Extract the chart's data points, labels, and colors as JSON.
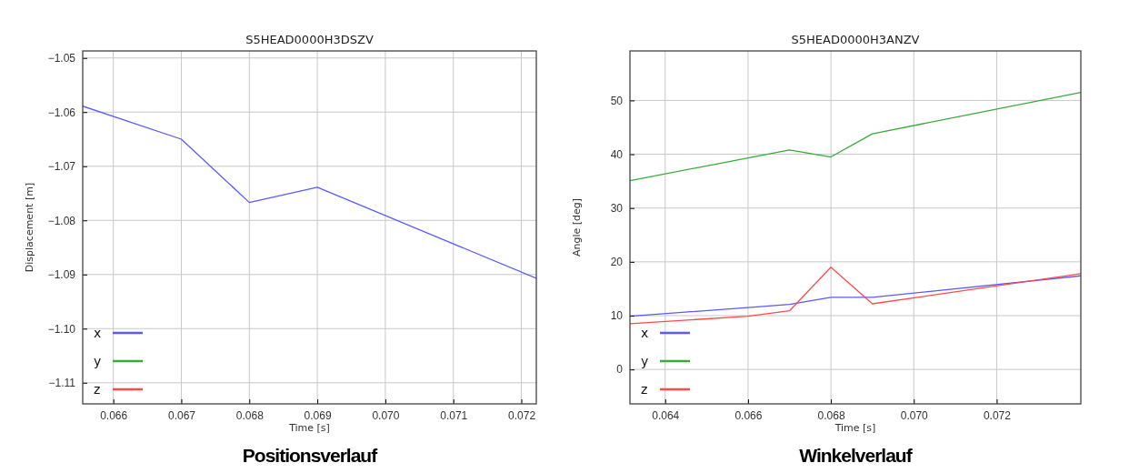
{
  "chart_data": [
    {
      "type": "line",
      "title": "S5HEAD0000H3DSZV",
      "xlabel": "Time [s]",
      "ylabel": "Displacement [m]",
      "annotations": [
        "Positionsverlauf"
      ],
      "x": [
        0.06555,
        0.067,
        0.068,
        0.069,
        0.07222
      ],
      "series": [
        {
          "name": "x",
          "color": "#5a5aff",
          "values": [
            -1.0589,
            -1.065,
            -1.0767,
            -1.0739,
            -1.0907
          ]
        },
        {
          "name": "y",
          "color": "#3aaa3a",
          "values": [
            null,
            null,
            null,
            null,
            null
          ]
        },
        {
          "name": "z",
          "color": "#ff4a4a",
          "values": [
            null,
            null,
            null,
            null,
            null
          ]
        }
      ],
      "xlim": [
        0.06555,
        0.07222
      ],
      "ylim": [
        -1.1139,
        -1.0487
      ],
      "xticks": [
        0.066,
        0.067,
        0.068,
        0.069,
        {
          "value": 0.07,
          "label": "0.070"
        },
        0.071,
        0.072
      ],
      "yticks": [
        {
          "value": -1.11,
          "label": "−1.11"
        },
        {
          "value": -1.1,
          "label": "−1.10"
        },
        {
          "value": -1.09,
          "label": "−1.09"
        },
        {
          "value": -1.08,
          "label": "−1.08"
        },
        {
          "value": -1.07,
          "label": "−1.07"
        },
        {
          "value": -1.06,
          "label": "−1.06"
        },
        {
          "value": -1.05,
          "label": "−1.05"
        }
      ],
      "grid": true,
      "legend": "bottom left"
    },
    {
      "type": "line",
      "title": "S5HEAD0000H3ANZV",
      "xlabel": "Time [s]",
      "ylabel": "Angle [deg]",
      "annotations": [
        "Winkelverlauf"
      ],
      "series": [
        {
          "name": "x",
          "color": "#5a5aff",
          "x": [
            0.06315,
            0.066,
            0.067,
            0.068,
            0.069,
            0.07403
          ],
          "values": [
            9.9,
            11.5,
            12.1,
            13.4,
            13.4,
            17.4
          ]
        },
        {
          "name": "y",
          "color": "#3aaa3a",
          "x": [
            0.06315,
            0.067,
            0.068,
            0.069,
            0.07403
          ],
          "values": [
            35.1,
            40.8,
            39.5,
            43.8,
            51.5
          ]
        },
        {
          "name": "z",
          "color": "#ff4a4a",
          "x": [
            0.06315,
            0.066,
            0.067,
            0.068,
            0.069,
            0.07403
          ],
          "values": [
            8.5,
            9.9,
            10.9,
            19.0,
            12.2,
            17.8
          ]
        }
      ],
      "xlim": [
        0.06315,
        0.07403
      ],
      "ylim": [
        -6.4,
        59.2
      ],
      "xticks": [
        0.064,
        0.066,
        0.068,
        {
          "value": 0.07,
          "label": "0.070"
        },
        0.072
      ],
      "yticks": [
        0,
        10,
        20,
        30,
        40,
        50
      ],
      "grid": true,
      "legend": "bottom left"
    }
  ]
}
